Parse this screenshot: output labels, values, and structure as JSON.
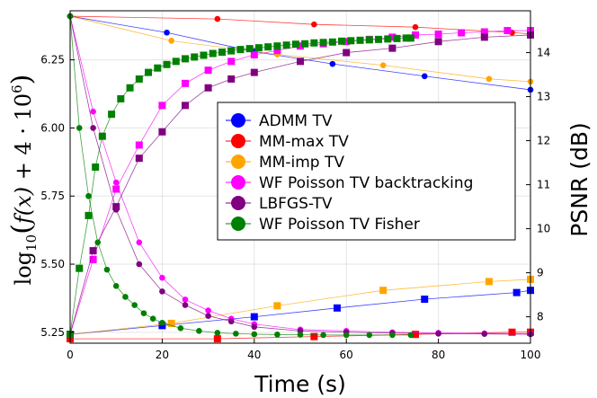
{
  "chart_data": {
    "type": "line",
    "title": "",
    "xlabel": "Time (s)",
    "ylabel_left": "log10( f(x) + 4·10^6 )",
    "ylabel_left_parts": {
      "base": "log",
      "sub": "10",
      "open": "(",
      "fx": "f(x)",
      "plus": " + 4 · 10",
      "sup": "6",
      "close": ")"
    },
    "ylabel_right": "PSNR (dB)",
    "xlim": [
      0,
      100
    ],
    "ylim_left": [
      5.21,
      6.43
    ],
    "ylim_right": [
      7.4,
      14.95
    ],
    "xticks": [
      0,
      20,
      40,
      60,
      80,
      100
    ],
    "yticks_left": [
      5.25,
      5.5,
      5.75,
      6.0,
      6.25
    ],
    "yticks_left_labels": [
      "5.25",
      "5.50",
      "5.75",
      "6.00",
      "6.25"
    ],
    "yticks_right": [
      8,
      9,
      10,
      11,
      12,
      13,
      14
    ],
    "grid": true,
    "legend_position": "center-right",
    "series": [
      {
        "name": "ADMM TV",
        "color": "#0000ff",
        "objective": {
          "x": [
            0,
            21,
            40,
            57,
            77,
            100
          ],
          "y": [
            6.41,
            6.35,
            6.28,
            6.235,
            6.19,
            6.14
          ]
        },
        "psnr": {
          "x": [
            0,
            20,
            40,
            58,
            77,
            97,
            100
          ],
          "y": [
            7.6,
            7.8,
            8.0,
            8.2,
            8.4,
            8.55,
            8.6
          ]
        }
      },
      {
        "name": "MM-max TV",
        "color": "#ff0000",
        "objective": {
          "x": [
            0,
            32,
            53,
            75,
            96,
            100
          ],
          "y": [
            6.41,
            6.4,
            6.38,
            6.37,
            6.35,
            6.345
          ]
        },
        "psnr": {
          "x": [
            0,
            32,
            53,
            75,
            96,
            100
          ],
          "y": [
            7.5,
            7.5,
            7.55,
            7.6,
            7.65,
            7.65
          ]
        }
      },
      {
        "name": "MM-imp TV",
        "color": "#ffa500",
        "objective": {
          "x": [
            0,
            22,
            45,
            68,
            91,
            100
          ],
          "y": [
            6.41,
            6.32,
            6.27,
            6.23,
            6.18,
            6.17
          ]
        },
        "psnr": {
          "x": [
            0,
            22,
            45,
            68,
            91,
            100
          ],
          "y": [
            7.6,
            7.85,
            8.25,
            8.6,
            8.8,
            8.85
          ]
        }
      },
      {
        "name": "WF Poisson TV backtracking",
        "color": "#ff00ff",
        "objective": {
          "x": [
            0,
            5,
            10,
            15,
            20,
            25,
            30,
            35,
            40,
            50,
            60,
            70,
            80,
            90,
            100
          ],
          "y": [
            6.41,
            6.06,
            5.8,
            5.58,
            5.45,
            5.37,
            5.33,
            5.3,
            5.28,
            5.26,
            5.255,
            5.25,
            5.248,
            5.246,
            5.245
          ]
        },
        "psnr": {
          "x": [
            0,
            5,
            10,
            15,
            20,
            25,
            30,
            35,
            40,
            45,
            50,
            55,
            60,
            65,
            70,
            75,
            80,
            85,
            90,
            95,
            100
          ],
          "y": [
            7.6,
            9.3,
            10.9,
            11.9,
            12.8,
            13.3,
            13.6,
            13.8,
            13.95,
            14.05,
            14.15,
            14.2,
            14.25,
            14.3,
            14.35,
            14.4,
            14.42,
            14.45,
            14.47,
            14.5,
            14.5
          ]
        }
      },
      {
        "name": "LBFGS-TV",
        "color": "#800080",
        "objective": {
          "x": [
            0,
            5,
            10,
            15,
            20,
            25,
            30,
            35,
            40,
            50,
            60,
            70,
            80,
            90,
            100
          ],
          "y": [
            6.41,
            6.0,
            5.7,
            5.5,
            5.4,
            5.35,
            5.31,
            5.29,
            5.27,
            5.255,
            5.25,
            5.247,
            5.245,
            5.244,
            5.243
          ]
        },
        "psnr": {
          "x": [
            0,
            5,
            10,
            15,
            20,
            25,
            30,
            35,
            40,
            50,
            60,
            70,
            80,
            90,
            100
          ],
          "y": [
            7.6,
            9.5,
            10.5,
            11.6,
            12.2,
            12.8,
            13.2,
            13.4,
            13.55,
            13.8,
            14.0,
            14.1,
            14.25,
            14.35,
            14.4
          ]
        }
      },
      {
        "name": "WF Poisson TV Fisher",
        "color": "#008000",
        "objective": {
          "x": [
            0,
            2,
            4,
            6,
            8,
            10,
            12,
            14,
            16,
            18,
            20,
            24,
            28,
            32,
            36,
            40,
            45,
            50,
            55,
            60,
            65,
            70,
            74
          ],
          "y": [
            6.41,
            6.0,
            5.75,
            5.58,
            5.48,
            5.42,
            5.38,
            5.35,
            5.32,
            5.3,
            5.285,
            5.265,
            5.255,
            5.248,
            5.245,
            5.243,
            5.242,
            5.241,
            5.24,
            5.24,
            5.24,
            5.24,
            5.24
          ]
        },
        "psnr": {
          "x": [
            0,
            2,
            4,
            5.5,
            7,
            9,
            11,
            13,
            15,
            17,
            19,
            21,
            23,
            25,
            27,
            29,
            31,
            33,
            35,
            37,
            39,
            41,
            43,
            45,
            47,
            49,
            51,
            53,
            55,
            57,
            59,
            61,
            63,
            65,
            67,
            69,
            71,
            73,
            74
          ],
          "y": [
            7.6,
            9.1,
            10.3,
            11.4,
            12.1,
            12.6,
            12.95,
            13.2,
            13.4,
            13.55,
            13.65,
            13.73,
            13.8,
            13.86,
            13.9,
            13.94,
            13.98,
            14.01,
            14.04,
            14.07,
            14.09,
            14.11,
            14.13,
            14.15,
            14.17,
            14.19,
            14.2,
            14.22,
            14.23,
            14.24,
            14.26,
            14.27,
            14.28,
            14.29,
            14.3,
            14.31,
            14.32,
            14.33,
            14.33
          ]
        }
      }
    ]
  }
}
